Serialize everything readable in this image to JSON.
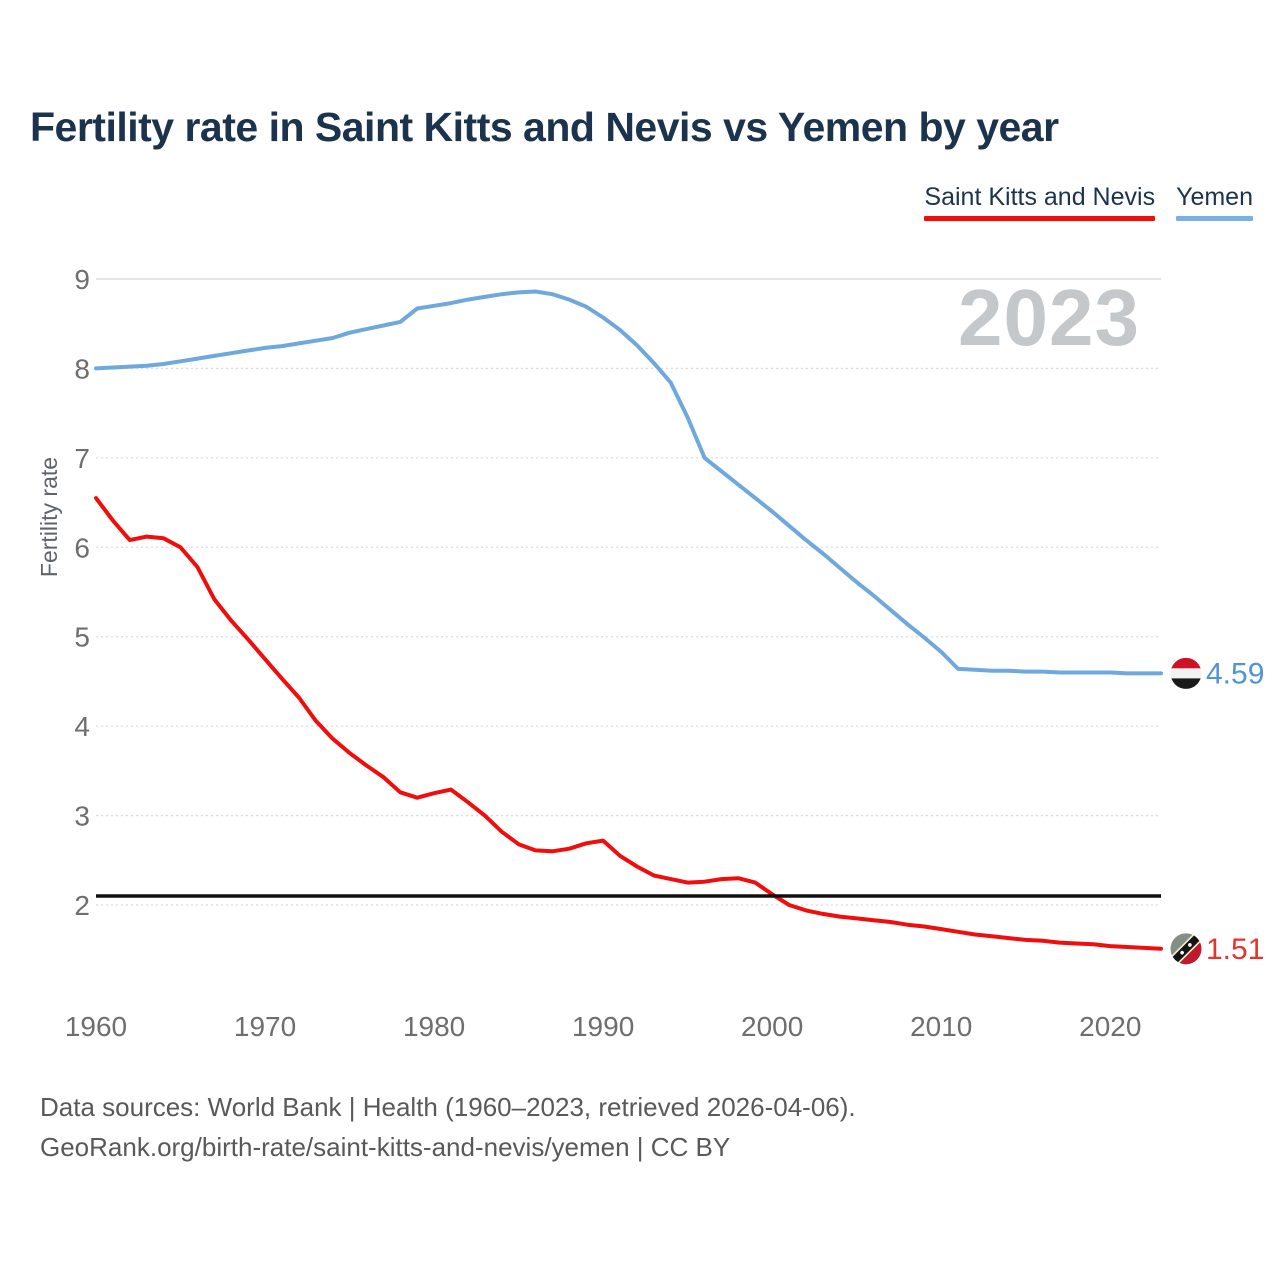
{
  "title": "Fertility rate in Saint Kitts and Nevis vs Yemen by year",
  "legend": [
    {
      "label": "Saint Kitts and Nevis",
      "color": "#f20d0d"
    },
    {
      "label": "Yemen",
      "color": "#77b1e8"
    }
  ],
  "watermark": "2023",
  "y_axis_label": "Fertility rate",
  "footer": {
    "line1": "Data sources: World Bank | Health (1960–2023, retrieved 2026-04-06).",
    "line2": "GeoRank.org/birth-rate/saint-kitts-and-nevis/yemen | CC BY"
  },
  "chart_data": {
    "type": "line",
    "title": "Fertility rate in Saint Kitts and Nevis vs Yemen by year",
    "ylabel": "Fertility rate",
    "xlabel": "",
    "grid": "horizontal",
    "legend_position": "top-right",
    "ylim": [
      1.3,
      9.3
    ],
    "xlim": [
      1960,
      2023
    ],
    "yticks": [
      2,
      3,
      4,
      5,
      6,
      7,
      8,
      9
    ],
    "xticks": [
      1960,
      1970,
      1980,
      1990,
      2000,
      2010,
      2020
    ],
    "reference_line": {
      "value": 2.1,
      "color": "#111111"
    },
    "x": [
      1960,
      1961,
      1962,
      1963,
      1964,
      1965,
      1966,
      1967,
      1968,
      1969,
      1970,
      1971,
      1972,
      1973,
      1974,
      1975,
      1976,
      1977,
      1978,
      1979,
      1980,
      1981,
      1982,
      1983,
      1984,
      1985,
      1986,
      1987,
      1988,
      1989,
      1990,
      1991,
      1992,
      1993,
      1994,
      1995,
      1996,
      1997,
      1998,
      1999,
      2000,
      2001,
      2002,
      2003,
      2004,
      2005,
      2006,
      2007,
      2008,
      2009,
      2010,
      2011,
      2012,
      2013,
      2014,
      2015,
      2016,
      2017,
      2018,
      2019,
      2020,
      2021,
      2022,
      2023
    ],
    "series": [
      {
        "name": "Saint Kitts and Nevis",
        "color": "#f20d0d",
        "end_label": "1.51",
        "end_value": 1.51,
        "values": [
          6.55,
          6.3,
          6.08,
          6.12,
          6.1,
          6.0,
          5.78,
          5.42,
          5.18,
          4.97,
          4.75,
          4.53,
          4.32,
          4.06,
          3.86,
          3.7,
          3.56,
          3.43,
          3.26,
          3.2,
          3.25,
          3.29,
          3.15,
          3.0,
          2.82,
          2.68,
          2.61,
          2.6,
          2.63,
          2.69,
          2.72,
          2.55,
          2.43,
          2.33,
          2.29,
          2.25,
          2.26,
          2.29,
          2.3,
          2.25,
          2.12,
          2.0,
          1.94,
          1.9,
          1.87,
          1.85,
          1.83,
          1.81,
          1.78,
          1.76,
          1.73,
          1.7,
          1.67,
          1.65,
          1.63,
          1.61,
          1.6,
          1.58,
          1.57,
          1.56,
          1.54,
          1.53,
          1.52,
          1.51
        ]
      },
      {
        "name": "Yemen",
        "color": "#6fa8dc",
        "end_label": "4.59",
        "end_value": 4.59,
        "values": [
          8.0,
          8.01,
          8.02,
          8.03,
          8.05,
          8.08,
          8.11,
          8.14,
          8.17,
          8.2,
          8.23,
          8.25,
          8.28,
          8.31,
          8.34,
          8.4,
          8.44,
          8.48,
          8.52,
          8.67,
          8.7,
          8.73,
          8.77,
          8.8,
          8.83,
          8.85,
          8.86,
          8.83,
          8.77,
          8.69,
          8.57,
          8.43,
          8.26,
          8.06,
          7.84,
          7.45,
          7.0,
          6.85,
          6.7,
          6.55,
          6.4,
          6.24,
          6.08,
          5.93,
          5.77,
          5.61,
          5.46,
          5.3,
          5.14,
          4.99,
          4.83,
          4.64,
          4.63,
          4.62,
          4.62,
          4.61,
          4.61,
          4.6,
          4.6,
          4.6,
          4.6,
          4.59,
          4.59,
          4.59
        ]
      }
    ]
  }
}
